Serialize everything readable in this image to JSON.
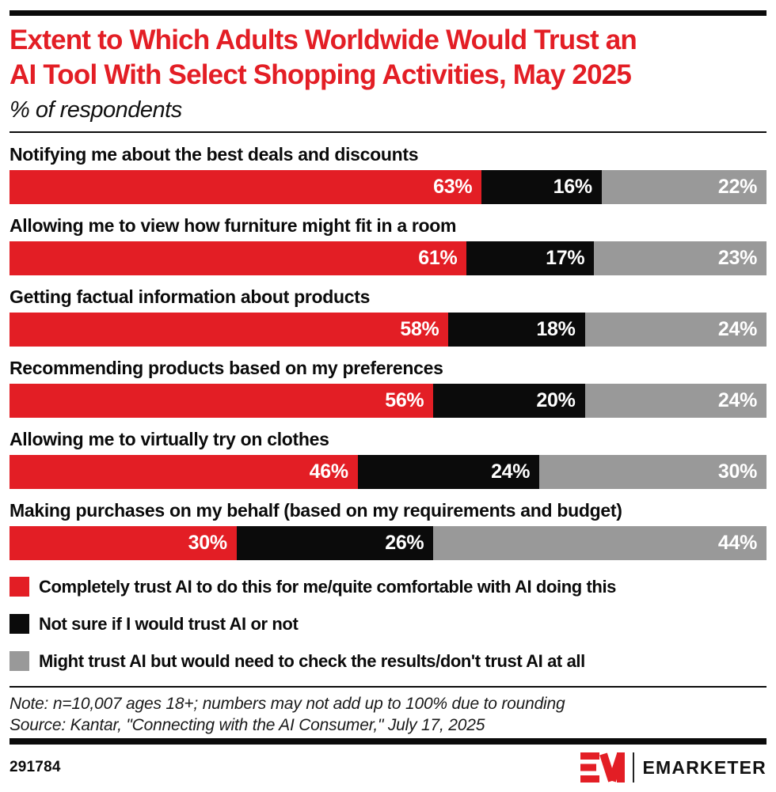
{
  "header": {
    "title": "Extent to Which Adults Worldwide Would Trust an AI Tool With Select Shopping Activities, May 2025",
    "title_lines": [
      "Extent to Which Adults Worldwide Would Trust an",
      "AI Tool With Select Shopping Activities, May 2025"
    ],
    "subtitle": "% of respondents",
    "title_color": "#e31e25"
  },
  "chart_data": {
    "type": "bar",
    "stacked": true,
    "orientation": "horizontal",
    "value_suffix": "%",
    "xlim": [
      0,
      100
    ],
    "grid": false,
    "legend_position": "bottom",
    "categories": [
      "Notifying me about the best deals and discounts",
      "Allowing me to view how furniture might fit in a room",
      "Getting factual information about products",
      "Recommending products based on my preferences",
      "Allowing me to virtually try on clothes",
      "Making purchases on my behalf (based on my requirements and budget)"
    ],
    "series": [
      {
        "name": "Completely trust AI to do this for me/quite comfortable with AI doing this",
        "color": "#e31e25",
        "values": [
          63,
          61,
          58,
          56,
          46,
          30
        ]
      },
      {
        "name": "Not sure if I would trust AI or not",
        "color": "#0b0b0b",
        "values": [
          16,
          17,
          18,
          20,
          24,
          26
        ]
      },
      {
        "name": "Might trust AI but would need to check the results/don't trust AI at all",
        "color": "#999999",
        "values": [
          22,
          23,
          24,
          24,
          30,
          44
        ]
      }
    ]
  },
  "notes": {
    "note": "Note: n=10,007 ages 18+; numbers may not add up to 100% due to rounding",
    "source": "Source: Kantar, \"Connecting with the AI Consumer,\" July 17, 2025"
  },
  "footer": {
    "chart_id": "291784",
    "brand": "EMARKETER",
    "brand_red": "#e31e25"
  }
}
